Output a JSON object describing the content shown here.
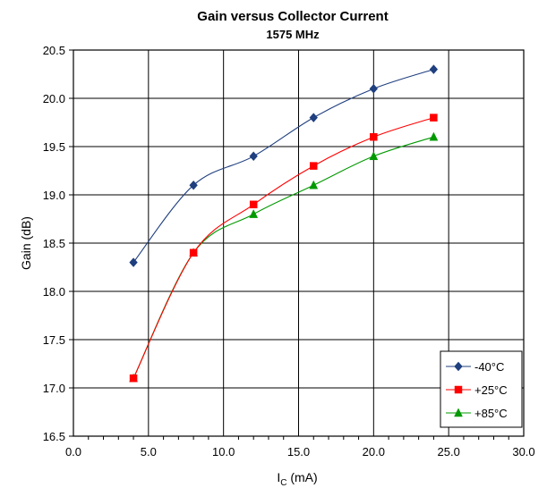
{
  "chart_data": {
    "type": "line",
    "title": "Gain versus Collector Current",
    "subtitle": "1575 MHz",
    "xlabel_main": "I",
    "xlabel_sub": "C",
    "xlabel_unit": " (mA)",
    "ylabel": "Gain (dB)",
    "xlim": [
      0,
      30
    ],
    "ylim": [
      16.5,
      20.5
    ],
    "xticks": [
      "0.0",
      "5.0",
      "10.0",
      "15.0",
      "20.0",
      "25.0",
      "30.0"
    ],
    "yticks": [
      "16.5",
      "17.0",
      "17.5",
      "18.0",
      "18.5",
      "19.0",
      "19.5",
      "20.0",
      "20.5"
    ],
    "grid": true,
    "legend_position": "bottom-right",
    "series": [
      {
        "name": "-40°C",
        "color": "#1f3f7f",
        "marker": "diamond",
        "x": [
          4,
          8,
          12,
          16,
          20,
          24
        ],
        "y": [
          18.3,
          19.1,
          19.4,
          19.8,
          20.1,
          20.3
        ]
      },
      {
        "name": "+25°C",
        "color": "#ff0000",
        "marker": "square",
        "x": [
          4,
          8,
          12,
          16,
          20,
          24
        ],
        "y": [
          17.1,
          18.4,
          18.9,
          19.3,
          19.6,
          19.8
        ]
      },
      {
        "name": "+85°C",
        "color": "#009900",
        "marker": "triangle",
        "x": [
          4,
          8,
          12,
          16,
          20,
          24
        ],
        "y": [
          17.1,
          18.4,
          18.8,
          19.1,
          19.4,
          19.6
        ]
      }
    ]
  }
}
